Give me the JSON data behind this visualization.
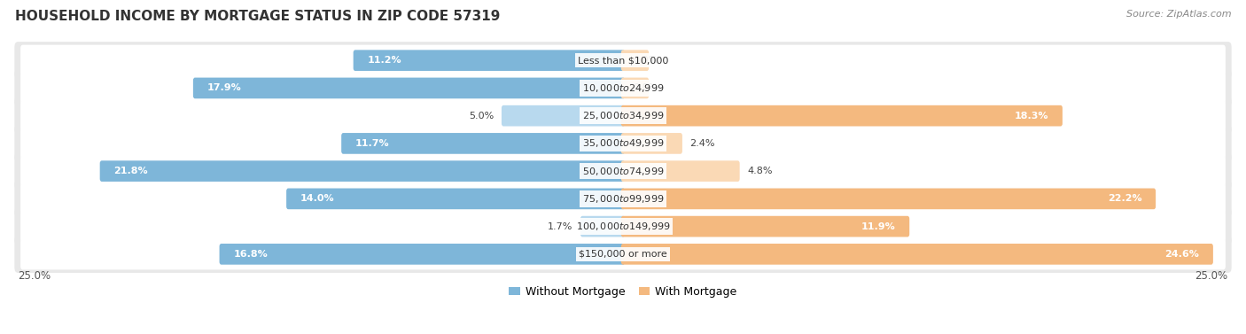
{
  "title": "HOUSEHOLD INCOME BY MORTGAGE STATUS IN ZIP CODE 57319",
  "source": "Source: ZipAtlas.com",
  "categories": [
    "Less than $10,000",
    "$10,000 to $24,999",
    "$25,000 to $34,999",
    "$35,000 to $49,999",
    "$50,000 to $74,999",
    "$75,000 to $99,999",
    "$100,000 to $149,999",
    "$150,000 or more"
  ],
  "without_mortgage": [
    11.2,
    17.9,
    5.0,
    11.7,
    21.8,
    14.0,
    1.7,
    16.8
  ],
  "with_mortgage": [
    0.0,
    0.0,
    18.3,
    2.4,
    4.8,
    22.2,
    11.9,
    24.6
  ],
  "color_without": "#7EB6D9",
  "color_with": "#F4B97F",
  "color_without_light": "#B8D9EE",
  "color_with_light": "#FAD9B5",
  "row_bg_color": "#e8e8e8",
  "max_val": 25.0,
  "legend_labels": [
    "Without Mortgage",
    "With Mortgage"
  ],
  "title_fontsize": 11,
  "source_fontsize": 8,
  "bar_label_fontsize": 8,
  "category_fontsize": 8
}
